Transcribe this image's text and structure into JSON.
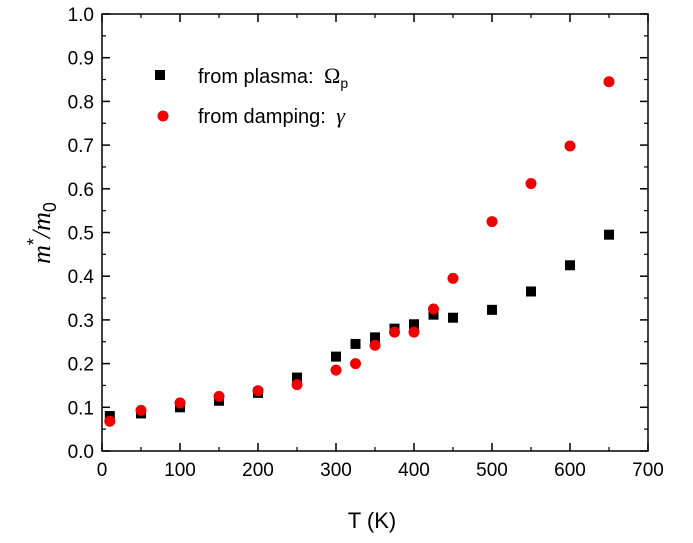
{
  "chart_data": {
    "type": "scatter",
    "title": "",
    "xlabel": "T (K)",
    "ylabel": "m*/m0",
    "xlim": [
      0,
      700
    ],
    "ylim": [
      0.0,
      1.0
    ],
    "xticks": [
      0,
      100,
      200,
      300,
      400,
      500,
      600,
      700
    ],
    "yticks": [
      0.0,
      0.1,
      0.2,
      0.3,
      0.4,
      0.5,
      0.6,
      0.7,
      0.8,
      0.9,
      1.0
    ],
    "grid": false,
    "legend_position": "top-left",
    "series": [
      {
        "name": "from plasma: Ωp",
        "marker": "square",
        "color": "#000000",
        "points": [
          [
            10,
            0.08
          ],
          [
            50,
            0.086
          ],
          [
            100,
            0.1
          ],
          [
            150,
            0.115
          ],
          [
            200,
            0.133
          ],
          [
            250,
            0.168
          ],
          [
            300,
            0.216
          ],
          [
            325,
            0.245
          ],
          [
            350,
            0.26
          ],
          [
            375,
            0.28
          ],
          [
            400,
            0.29
          ],
          [
            425,
            0.312
          ],
          [
            450,
            0.305
          ],
          [
            500,
            0.323
          ],
          [
            550,
            0.365
          ],
          [
            600,
            0.425
          ],
          [
            650,
            0.495
          ]
        ]
      },
      {
        "name": "from damping: γ",
        "marker": "circle",
        "color": "#ee0000",
        "points": [
          [
            10,
            0.068
          ],
          [
            50,
            0.093
          ],
          [
            100,
            0.11
          ],
          [
            150,
            0.125
          ],
          [
            200,
            0.138
          ],
          [
            250,
            0.152
          ],
          [
            300,
            0.185
          ],
          [
            325,
            0.2
          ],
          [
            350,
            0.242
          ],
          [
            375,
            0.272
          ],
          [
            400,
            0.272
          ],
          [
            425,
            0.325
          ],
          [
            450,
            0.395
          ],
          [
            500,
            0.525
          ],
          [
            550,
            0.612
          ],
          [
            600,
            0.698
          ],
          [
            650,
            0.845
          ]
        ]
      }
    ]
  },
  "legend": {
    "plasma_prefix": "from plasma:",
    "plasma_symbol": "Ω",
    "plasma_sub": "p",
    "damping_prefix": "from damping:",
    "damping_symbol": "γ"
  },
  "ylabel_parts": {
    "main": "m",
    "sup": "*",
    "slash": "/m",
    "sub": "0"
  }
}
